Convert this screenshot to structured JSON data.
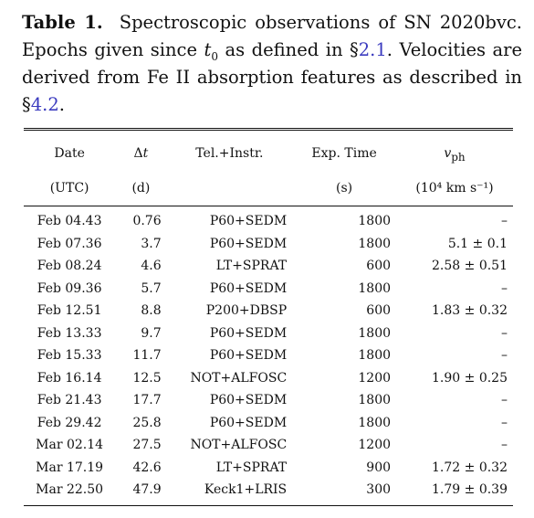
{
  "caption": {
    "label": "Table 1.",
    "text_part1": "Spectroscopic observations of SN 2020bvc. Epochs given since ",
    "t0_symbol": "t",
    "t0_subscript": "0",
    "text_part2": " as defined in §",
    "ref1": "2.1",
    "text_part3": ". Velocities are derived from Fe II absorption features as described in §",
    "ref2": "4.2",
    "text_part4": "."
  },
  "table": {
    "headers": [
      "Date",
      "Δt",
      "Tel.+Instr.",
      "Exp. Time",
      "v_ph"
    ],
    "header_v_symbol": "v",
    "header_v_sub": "ph",
    "units": [
      "(UTC)",
      "(d)",
      "",
      "(s)",
      "(10⁴ km s⁻¹)"
    ],
    "rows": [
      [
        "Feb 04.43",
        "0.76",
        "P60+SEDM",
        "1800",
        "–"
      ],
      [
        "Feb 07.36",
        "3.7",
        "P60+SEDM",
        "1800",
        "5.1 ± 0.1"
      ],
      [
        "Feb 08.24",
        "4.6",
        "LT+SPRAT",
        "600",
        "2.58 ± 0.51"
      ],
      [
        "Feb 09.36",
        "5.7",
        "P60+SEDM",
        "1800",
        "–"
      ],
      [
        "Feb 12.51",
        "8.8",
        "P200+DBSP",
        "600",
        "1.83 ± 0.32"
      ],
      [
        "Feb 13.33",
        "9.7",
        "P60+SEDM",
        "1800",
        "–"
      ],
      [
        "Feb 15.33",
        "11.7",
        "P60+SEDM",
        "1800",
        "–"
      ],
      [
        "Feb 16.14",
        "12.5",
        "NOT+ALFOSC",
        "1200",
        "1.90 ± 0.25"
      ],
      [
        "Feb 21.43",
        "17.7",
        "P60+SEDM",
        "1800",
        "–"
      ],
      [
        "Feb 29.42",
        "25.8",
        "P60+SEDM",
        "1800",
        "–"
      ],
      [
        "Mar 02.14",
        "27.5",
        "NOT+ALFOSC",
        "1200",
        "–"
      ],
      [
        "Mar 17.19",
        "42.6",
        "LT+SPRAT",
        "900",
        "1.72 ± 0.32"
      ],
      [
        "Mar 22.50",
        "47.9",
        "Keck1+LRIS",
        "300",
        "1.79 ± 0.39"
      ]
    ]
  }
}
